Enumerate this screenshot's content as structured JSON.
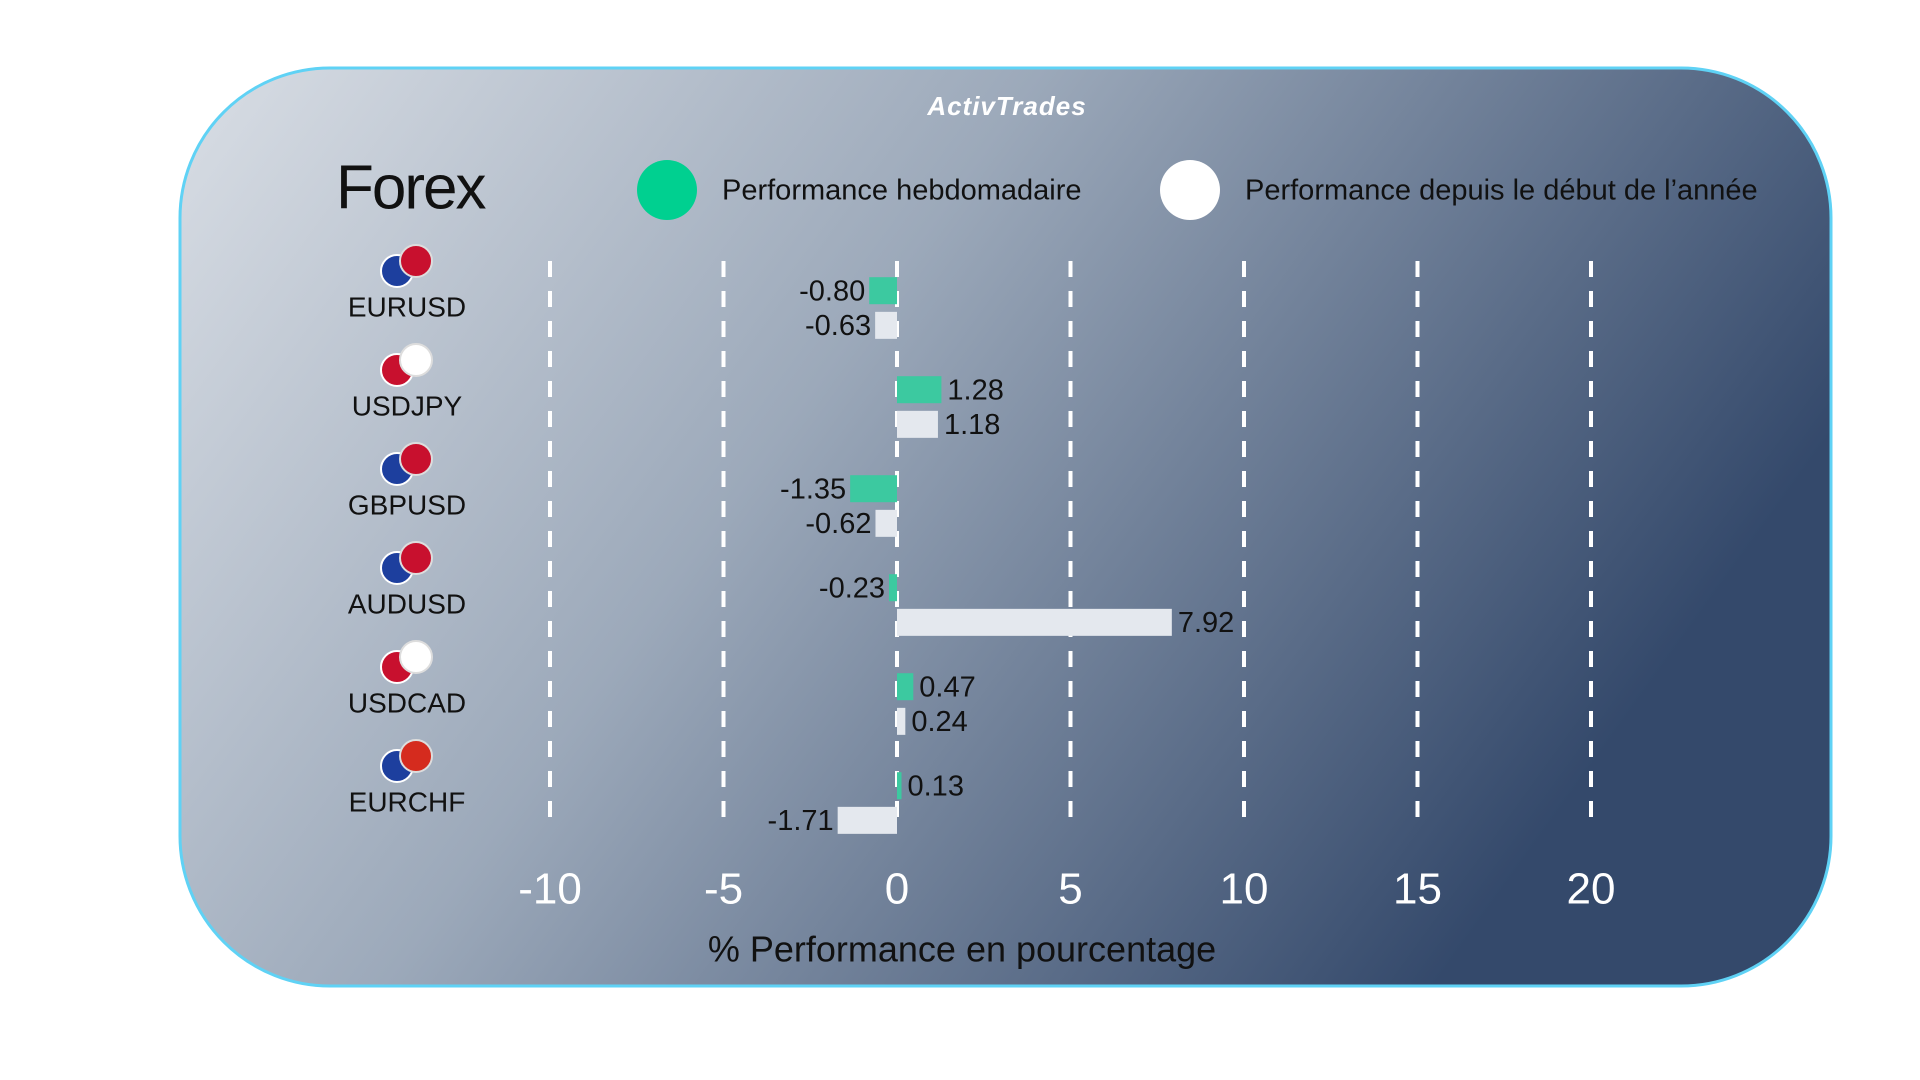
{
  "chart_data": {
    "type": "hbar",
    "brand": "ActivTrades",
    "title": "Forex",
    "xlabel": "% Performance en pourcentage",
    "categories": [
      "EURUSD",
      "USDJPY",
      "GBPUSD",
      "AUDUSD",
      "USDCAD",
      "EURCHF"
    ],
    "series": [
      {
        "name": "Performance hebdomadaire",
        "color": "#3cc9a0",
        "values": [
          -0.8,
          1.28,
          -1.35,
          -0.23,
          0.47,
          0.13
        ],
        "value_labels": [
          "-0.80",
          "1.28",
          "-1.35",
          "-0.23",
          "0.47",
          "0.13"
        ]
      },
      {
        "name": "Performance depuis le début de l’année",
        "color": "#e4e8ee",
        "values": [
          -0.63,
          1.18,
          -0.62,
          7.92,
          0.24,
          -1.71
        ],
        "value_labels": [
          "-0.63",
          "1.18",
          "-0.62",
          "7.92",
          "0.24",
          "-1.71"
        ]
      }
    ],
    "xlim": [
      -10,
      20
    ],
    "xticks": [
      -10,
      -5,
      0,
      5,
      10,
      15,
      20
    ],
    "grid": true
  }
}
